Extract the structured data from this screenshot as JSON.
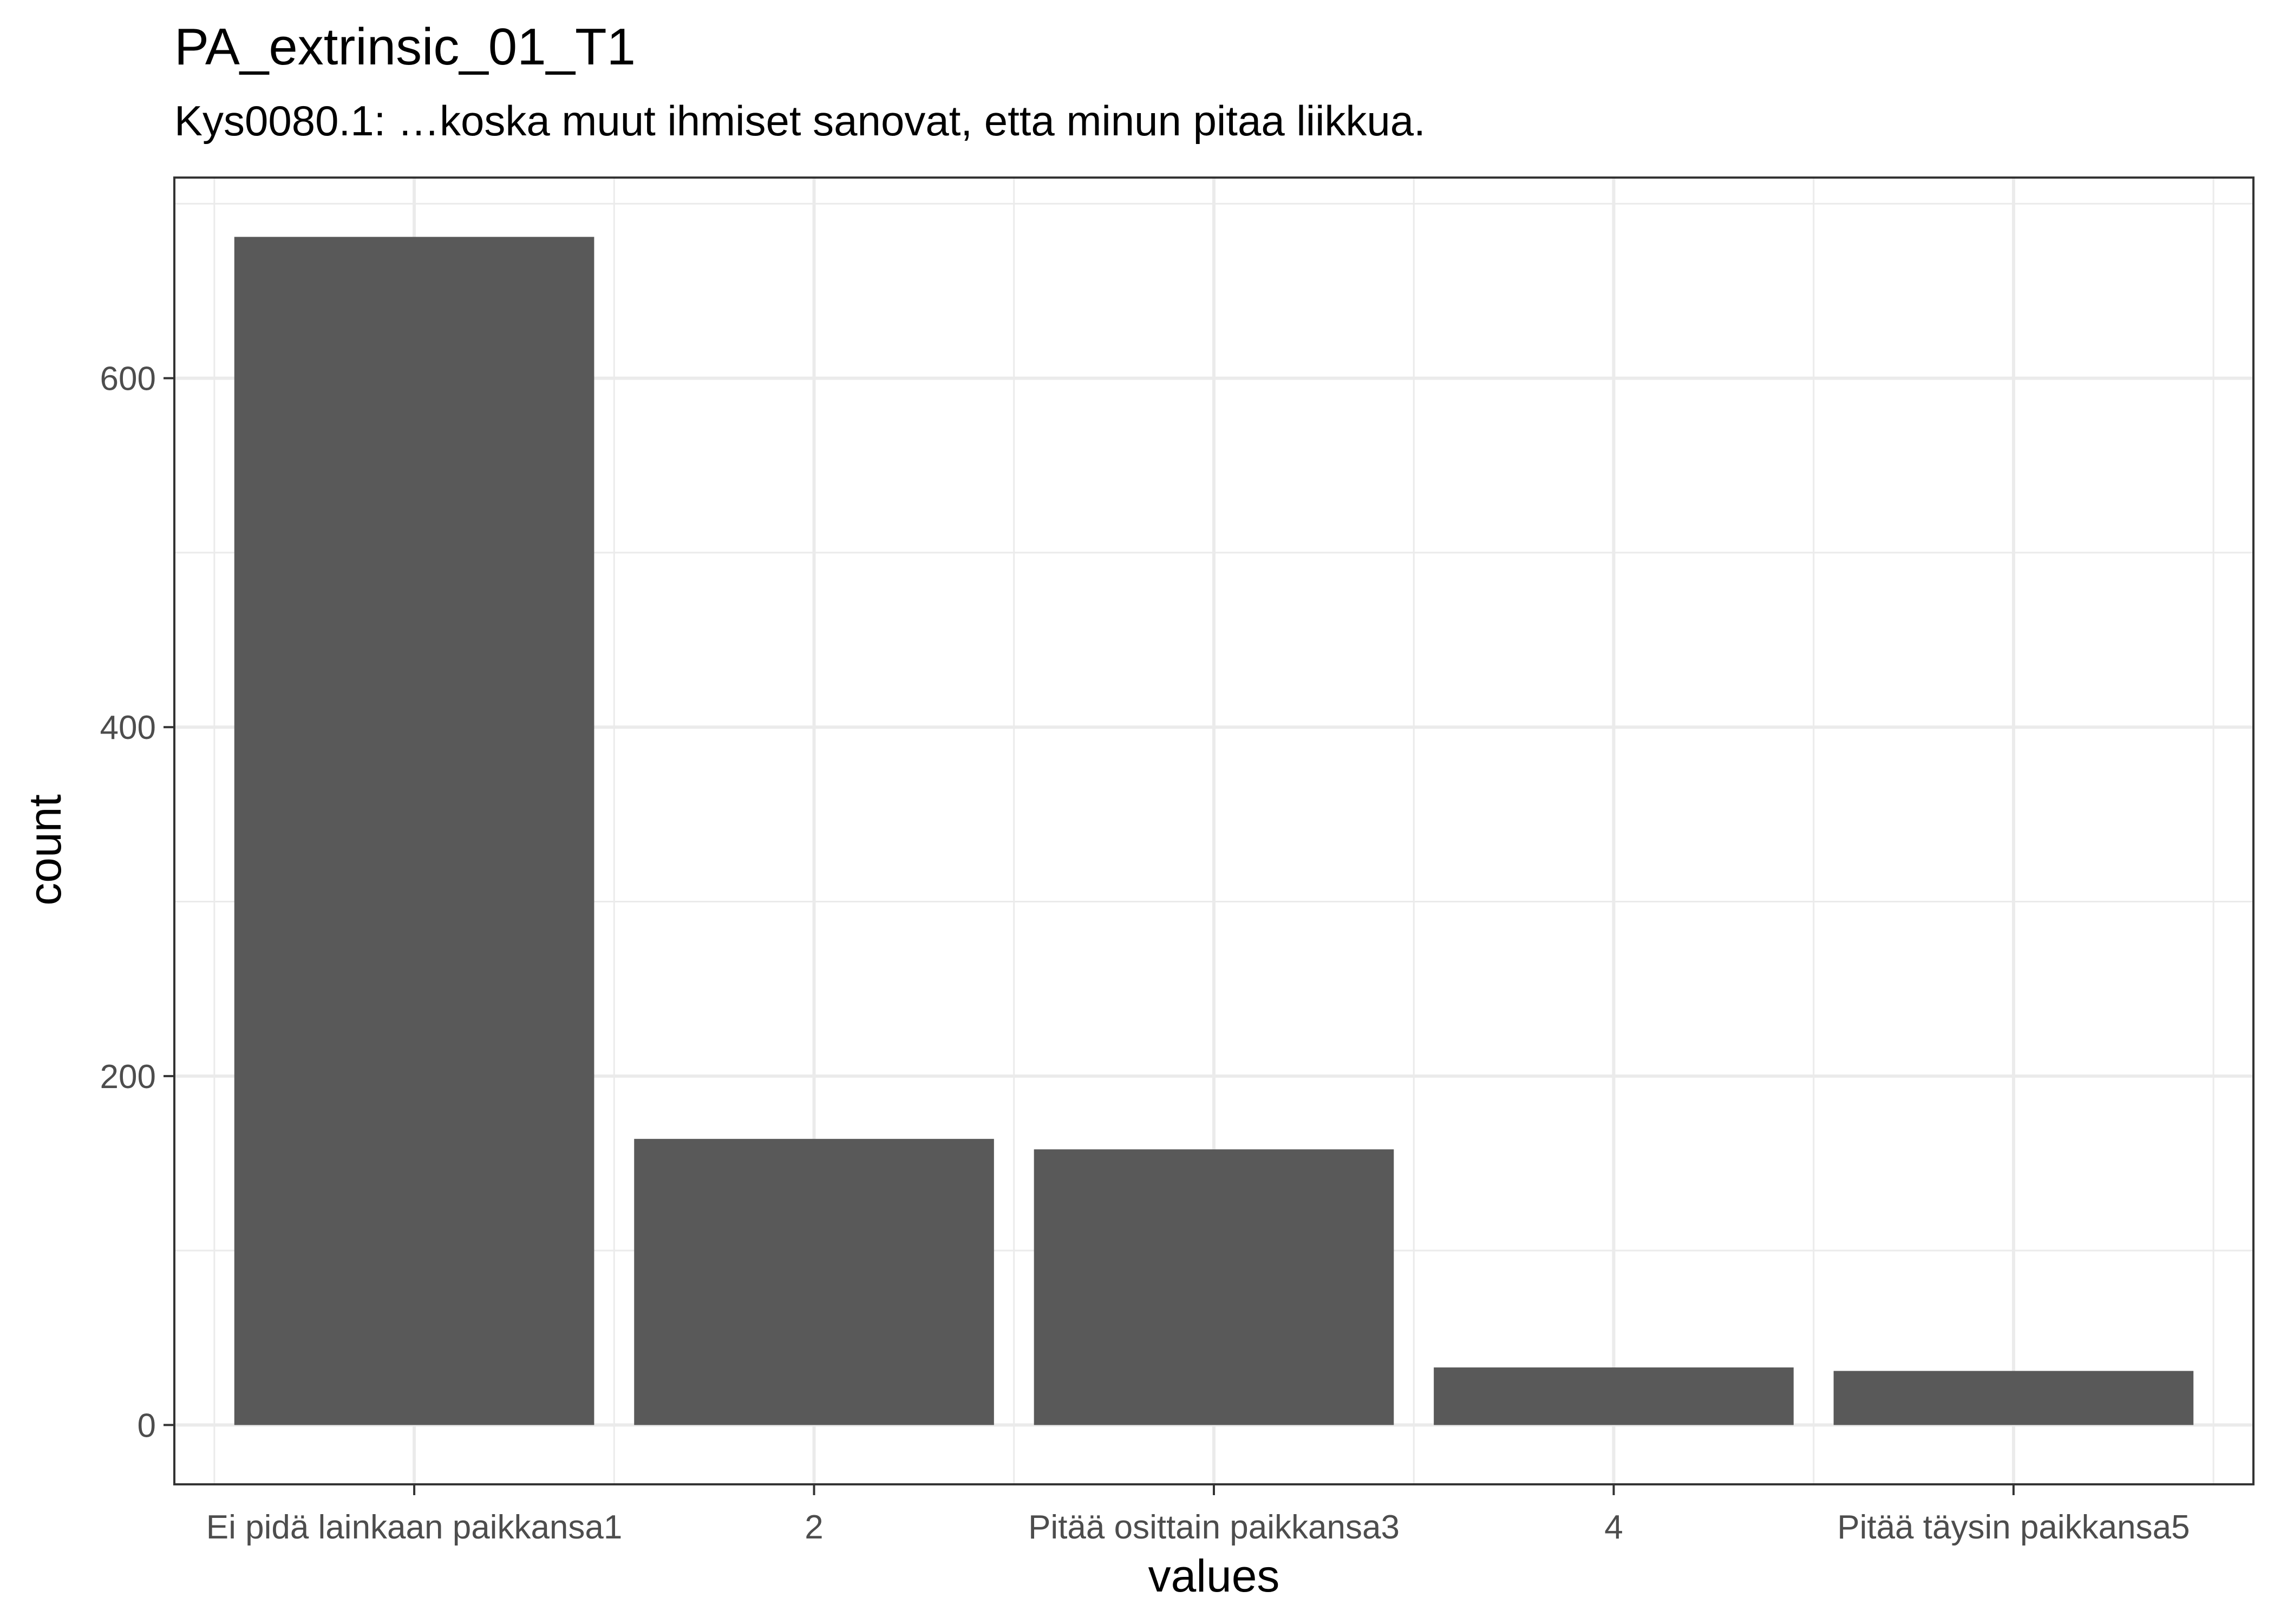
{
  "chart_data": {
    "type": "bar",
    "title": "PA_extrinsic_01_T1",
    "subtitle": "Kys0080.1: …koska muut ihmiset sanovat, etta minun pitaa liikkua.",
    "xlabel": "values",
    "ylabel": "count",
    "categories": [
      "Ei pidä lainkaan paikkansa1",
      "2",
      "Pitää osittain paikkansa3",
      "4",
      "Pitää täysin paikkansa5"
    ],
    "values": [
      681,
      164,
      158,
      33,
      31
    ],
    "ylim": [
      -34,
      715
    ],
    "yticks": [
      0,
      200,
      400,
      600
    ],
    "grid": true,
    "bar_color": "#595959",
    "grid_color": "#ebebeb",
    "panel_border_color": "#333333",
    "background": "#ffffff"
  }
}
